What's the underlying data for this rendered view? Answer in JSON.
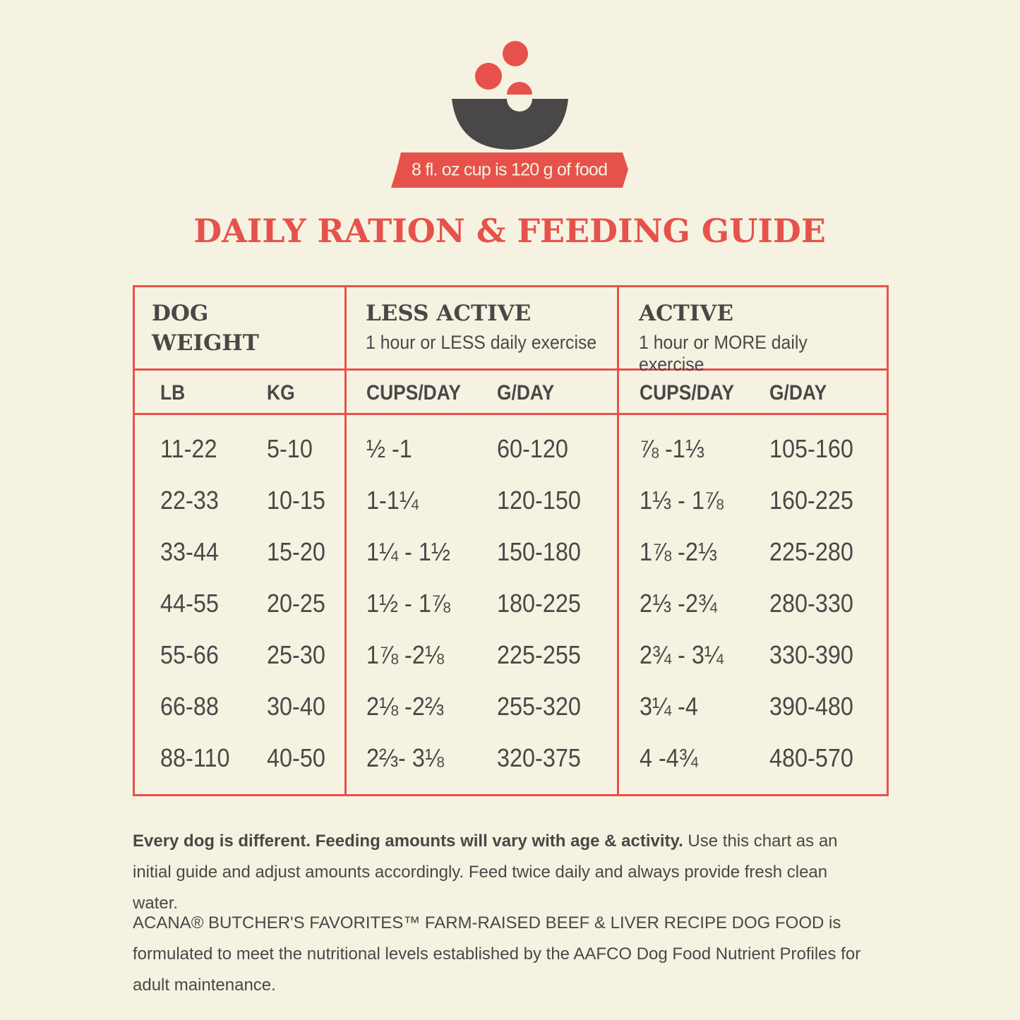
{
  "banner": "8 fl. oz cup is 120 g of food",
  "title": "DAILY RATION & FEEDING GUIDE",
  "table": {
    "groups": [
      {
        "title": "DOG WEIGHT"
      },
      {
        "title": "LESS ACTIVE",
        "subtitle": "1 hour or LESS daily exercise"
      },
      {
        "title": "ACTIVE",
        "subtitle": "1 hour or MORE daily exercise"
      }
    ],
    "columns": [
      "LB",
      "KG",
      "CUPS/DAY",
      "G/DAY",
      "CUPS/DAY",
      "G/DAY"
    ],
    "rows": [
      [
        "11-22",
        "5-10",
        "½ -1",
        "60-120",
        "⅞ -1⅓",
        "105-160"
      ],
      [
        "22-33",
        "10-15",
        "1-1¼",
        "120-150",
        "1⅓ - 1⅞",
        "160-225"
      ],
      [
        "33-44",
        "15-20",
        "1¼ - 1½",
        "150-180",
        "1⅞ -2⅓",
        "225-280"
      ],
      [
        "44-55",
        "20-25",
        "1½ - 1⅞",
        "180-225",
        "2⅓ -2¾",
        "280-330"
      ],
      [
        "55-66",
        "25-30",
        "1⅞ -2⅛",
        "225-255",
        "2¾ - 3¼",
        "330-390"
      ],
      [
        "66-88",
        "30-40",
        "2⅛ -2⅔",
        "255-320",
        "3¼ -4",
        "390-480"
      ],
      [
        "88-110",
        "40-50",
        "2⅔- 3⅛",
        "320-375",
        "4 -4¾",
        "480-570"
      ]
    ]
  },
  "notes": {
    "note1_bold": "Every dog is different. Feeding amounts will vary with age & activity.",
    "note1_rest": "Use this chart as an initial guide and adjust amounts accordingly. Feed twice daily and always provide fresh clean water.",
    "note2": "ACANA® BUTCHER'S FAVORITES™ FARM-RAISED BEEF & LIVER RECIPE DOG FOOD is formulated to meet the nutritional levels established by the AAFCO Dog Food Nutrient Profiles for adult maintenance."
  }
}
